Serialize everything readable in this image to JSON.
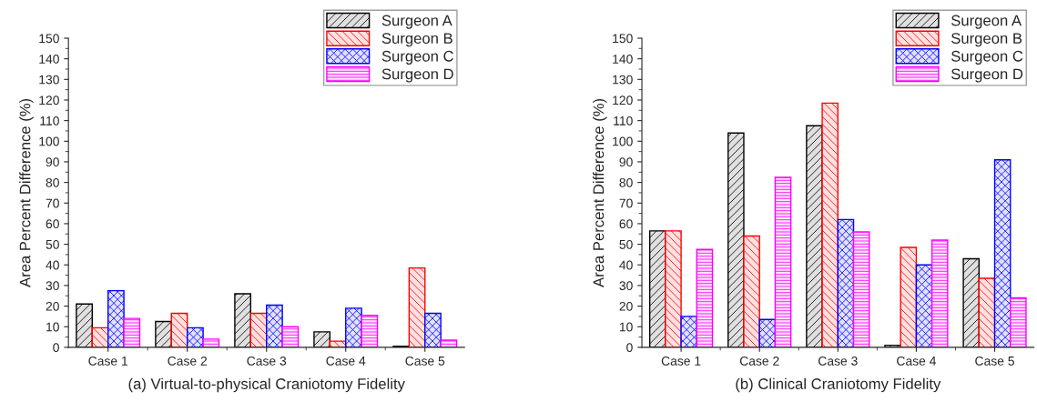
{
  "chart_data": [
    {
      "type": "bar",
      "xlabel": "(a) Virtual-to-physical Craniotomy Fidelity",
      "ylabel": "Area Percent Difference (%)",
      "categories": [
        "Case 1",
        "Case 2",
        "Case 3",
        "Case 4",
        "Case 5"
      ],
      "ylim": [
        0,
        150
      ],
      "yticks": [
        0,
        10,
        20,
        30,
        40,
        50,
        60,
        70,
        80,
        90,
        100,
        110,
        120,
        130,
        140,
        150
      ],
      "grid": false,
      "legend": "top right",
      "series": [
        {
          "name": "Surgeon A",
          "color": "#000000",
          "values": [
            21,
            12.5,
            26,
            7.5,
            0.5
          ]
        },
        {
          "name": "Surgeon B",
          "color": "#ff0000",
          "values": [
            9.5,
            16.5,
            16.5,
            3,
            38.5
          ]
        },
        {
          "name": "Surgeon C",
          "color": "#0000ff",
          "values": [
            27.5,
            9.5,
            20.5,
            19,
            16.5
          ]
        },
        {
          "name": "Surgeon D",
          "color": "#ff00ff",
          "values": [
            14,
            4,
            10,
            15.5,
            3.5
          ]
        }
      ]
    },
    {
      "type": "bar",
      "xlabel": "(b) Clinical Craniotomy Fidelity",
      "ylabel": "Area Percent Difference (%)",
      "categories": [
        "Case 1",
        "Case 2",
        "Case 3",
        "Case 4",
        "Case 5"
      ],
      "ylim": [
        0,
        150
      ],
      "yticks": [
        0,
        10,
        20,
        30,
        40,
        50,
        60,
        70,
        80,
        90,
        100,
        110,
        120,
        130,
        140,
        150
      ],
      "grid": false,
      "legend": "top right",
      "series": [
        {
          "name": "Surgeon A",
          "color": "#000000",
          "values": [
            56.5,
            104,
            107.5,
            1,
            43
          ]
        },
        {
          "name": "Surgeon B",
          "color": "#ff0000",
          "values": [
            56.5,
            54,
            118.5,
            48.5,
            33.5
          ]
        },
        {
          "name": "Surgeon C",
          "color": "#0000ff",
          "values": [
            15,
            13.5,
            62,
            40,
            91
          ]
        },
        {
          "name": "Surgeon D",
          "color": "#ff00ff",
          "values": [
            47.5,
            82.5,
            56,
            52,
            24
          ]
        }
      ]
    }
  ]
}
